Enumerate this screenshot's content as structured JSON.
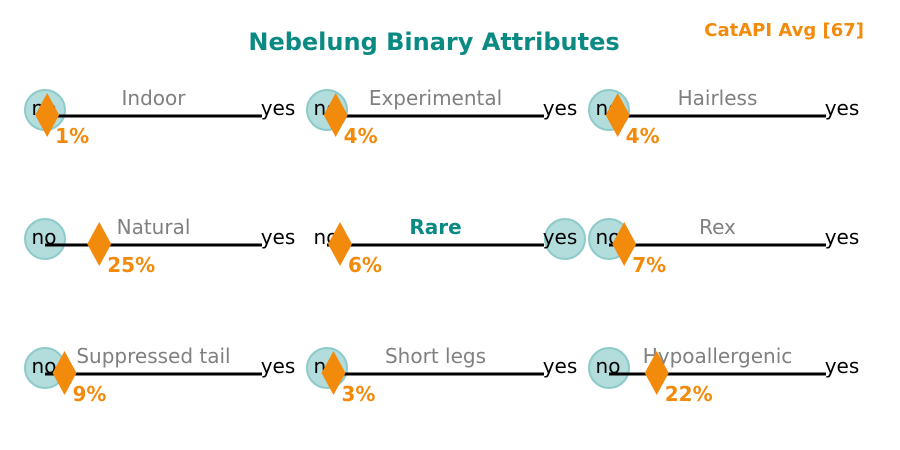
{
  "title": "Nebelung Binary Attributes",
  "corner_label": "CatAPI Avg [67]",
  "end_labels": {
    "left": "no",
    "right": "yes"
  },
  "colors": {
    "title": "#0b8a84",
    "accent": "#f28a0c",
    "label": "#808080",
    "highlight_label": "#0b8a84",
    "circle_fill": "#b3dcdc",
    "circle_stroke": "#8ccbc9",
    "axis": "#000000"
  },
  "chart_data": {
    "type": "scatter",
    "title": "Nebelung Binary Attributes",
    "xlim": [
      0,
      100
    ],
    "unit": "%",
    "layout": "3x3 grid",
    "panels": [
      {
        "label": "Indoor",
        "value": 1,
        "value_label": "1%",
        "breed_value": "no",
        "highlight": false
      },
      {
        "label": "Experimental",
        "value": 4,
        "value_label": "4%",
        "breed_value": "no",
        "highlight": false
      },
      {
        "label": "Hairless",
        "value": 4,
        "value_label": "4%",
        "breed_value": "no",
        "highlight": false
      },
      {
        "label": "Natural",
        "value": 25,
        "value_label": "25%",
        "breed_value": "no",
        "highlight": false
      },
      {
        "label": "Rare",
        "value": 6,
        "value_label": "6%",
        "breed_value": "yes",
        "highlight": true
      },
      {
        "label": "Rex",
        "value": 7,
        "value_label": "7%",
        "breed_value": "no",
        "highlight": false
      },
      {
        "label": "Suppressed tail",
        "value": 9,
        "value_label": "9%",
        "breed_value": "no",
        "highlight": false
      },
      {
        "label": "Short legs",
        "value": 3,
        "value_label": "3%",
        "breed_value": "no",
        "highlight": false
      },
      {
        "label": "Hypoallergenic",
        "value": 22,
        "value_label": "22%",
        "breed_value": "no",
        "highlight": false
      }
    ]
  }
}
